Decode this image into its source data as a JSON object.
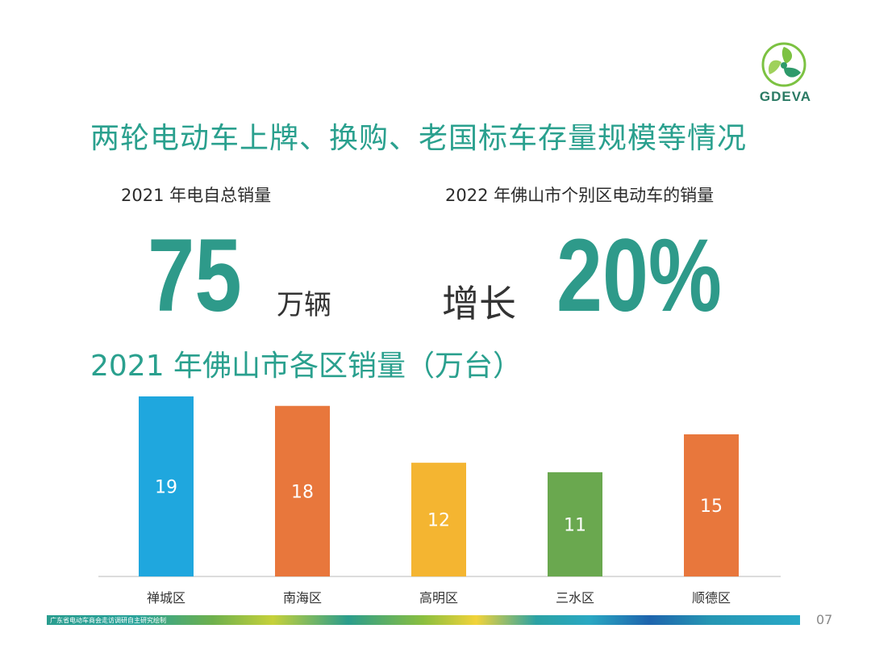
{
  "logo": {
    "text": "GDEVA"
  },
  "page_title": "两轮电动车上牌、换购、老国标车存量规模等情况",
  "stats": {
    "left_label": "2021 年电自总销量",
    "left_value": "75",
    "left_unit": "万辆",
    "right_label": "2022 年佛山市个别区电动车的销量",
    "right_prefix": "增长",
    "right_value": "20%"
  },
  "chart_title": "2021 年佛山市各区销量（万台）",
  "chart_data": {
    "type": "bar",
    "categories": [
      "禅城区",
      "南海区",
      "高明区",
      "三水区",
      "顺德区"
    ],
    "values": [
      19,
      18,
      12,
      11,
      15
    ],
    "colors": [
      "#1fa7de",
      "#e8773c",
      "#f4b531",
      "#6aa84f",
      "#e8773c"
    ],
    "ylim": [
      0,
      19
    ],
    "grid": false,
    "legend": "none"
  },
  "footer": {
    "note": "广东省电动车商会走访调研自主研究绘制",
    "page_number": "07"
  }
}
